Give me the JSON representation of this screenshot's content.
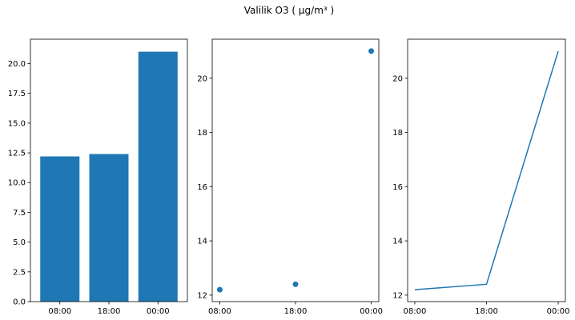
{
  "title": "Valilik O3 ( µg/m³ )",
  "colors": {
    "series": "#1f77b4",
    "axes": "#000000",
    "background": "#ffffff"
  },
  "chart_data": [
    {
      "type": "bar",
      "categories": [
        "08:00",
        "18:00",
        "00:00"
      ],
      "values": [
        12.2,
        12.4,
        21.0
      ],
      "ylim": [
        0,
        22.05
      ],
      "yticks": [
        0.0,
        2.5,
        5.0,
        7.5,
        10.0,
        12.5,
        15.0,
        17.5,
        20.0
      ],
      "ytick_labels": [
        "0.0",
        "2.5",
        "5.0",
        "7.5",
        "10.0",
        "12.5",
        "15.0",
        "17.5",
        "20.0"
      ],
      "grid": false
    },
    {
      "type": "scatter",
      "categories": [
        "08:00",
        "18:00",
        "00:00"
      ],
      "values": [
        12.2,
        12.4,
        21.0
      ],
      "ylim": [
        11.76,
        21.44
      ],
      "yticks": [
        12,
        14,
        16,
        18,
        20
      ],
      "ytick_labels": [
        "12",
        "14",
        "16",
        "18",
        "20"
      ],
      "grid": false
    },
    {
      "type": "line",
      "categories": [
        "08:00",
        "18:00",
        "00:00"
      ],
      "values": [
        12.2,
        12.4,
        21.0
      ],
      "ylim": [
        11.76,
        21.44
      ],
      "yticks": [
        12,
        14,
        16,
        18,
        20
      ],
      "ytick_labels": [
        "12",
        "14",
        "16",
        "18",
        "20"
      ],
      "grid": false
    }
  ]
}
